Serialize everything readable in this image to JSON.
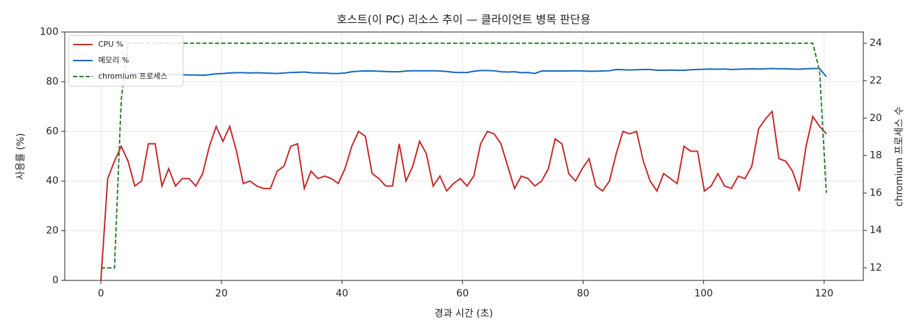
{
  "chart_data": {
    "type": "line",
    "title": "호스트(이 PC) 리소스 추이 — 클라이언트 병목 판단용",
    "x_label": "경과 시간 (초)",
    "y_label": "사용률 (%)",
    "y2_label": "chromium 프로세스 수",
    "x": [
      0,
      1.125,
      2.25,
      3.375,
      4.5,
      5.625,
      6.75,
      7.875,
      9,
      10.125,
      11.25,
      12.375,
      13.5,
      14.625,
      15.75,
      16.875,
      18,
      19.125,
      20.25,
      21.375,
      22.5,
      23.625,
      24.75,
      25.875,
      27,
      28.125,
      29.25,
      30.375,
      31.5,
      32.625,
      33.75,
      34.875,
      36,
      37.125,
      38.25,
      39.375,
      40.5,
      41.625,
      42.75,
      43.875,
      45,
      46.125,
      47.25,
      48.375,
      49.5,
      50.625,
      51.75,
      52.875,
      54,
      55.125,
      56.25,
      57.375,
      58.5,
      59.625,
      60.75,
      61.875,
      63,
      64.125,
      65.25,
      66.375,
      67.5,
      68.625,
      69.75,
      70.875,
      72,
      73.125,
      74.25,
      75.375,
      76.5,
      77.625,
      78.75,
      79.875,
      81,
      82.125,
      83.25,
      84.375,
      85.5,
      86.625,
      87.75,
      88.875,
      90,
      91.125,
      92.25,
      93.375,
      94.5,
      95.625,
      96.75,
      97.875,
      99,
      100.125,
      101.25,
      102.375,
      103.5,
      104.625,
      105.75,
      106.875,
      108,
      109.125,
      110.25,
      111.375,
      112.5,
      113.625,
      114.75,
      115.875,
      117,
      118.125,
      119.25,
      120.375
    ],
    "series": [
      {
        "name": "CPU %",
        "color": "#c62828",
        "linestyle": "solid",
        "values": [
          0,
          41,
          48,
          54,
          48,
          38,
          40,
          55,
          55,
          38,
          45,
          38,
          41,
          41,
          38,
          43,
          54,
          62,
          56,
          62,
          52,
          39,
          40,
          38,
          37,
          37,
          44,
          46,
          54,
          55,
          37,
          44,
          41,
          42,
          41,
          39,
          45,
          54,
          60,
          58,
          43,
          41,
          38,
          38,
          55,
          40,
          46,
          56,
          51,
          38,
          42,
          36,
          39,
          41,
          38,
          42,
          55,
          60,
          59,
          55,
          46,
          37,
          42,
          41,
          38,
          40,
          45,
          57,
          55,
          43,
          40,
          45,
          49,
          38,
          36,
          40,
          51,
          60,
          59,
          60,
          48,
          40,
          36,
          43,
          41,
          39,
          54,
          52,
          52,
          36,
          38,
          43,
          38,
          37,
          42,
          41,
          46,
          61,
          65,
          68,
          49,
          48,
          44,
          36,
          54,
          66,
          62,
          59
        ]
      },
      {
        "name": "메모리 %",
        "color": "#1565c0",
        "linestyle": "solid",
        "values": [
          83,
          83,
          83,
          83,
          83.5,
          83.3,
          83.2,
          83.1,
          83,
          82.9,
          82.9,
          82.8,
          82.8,
          82.7,
          82.7,
          82.6,
          82.8,
          83.2,
          83.3,
          83.5,
          83.6,
          83.6,
          83.5,
          83.6,
          83.5,
          83.4,
          83.3,
          83.5,
          83.7,
          83.8,
          83.9,
          83.6,
          83.5,
          83.5,
          83.3,
          83.3,
          83.5,
          84,
          84.2,
          84.3,
          84.3,
          84.2,
          84.1,
          84,
          84,
          84.3,
          84.4,
          84.4,
          84.4,
          84.4,
          84.3,
          84.1,
          83.8,
          83.7,
          83.7,
          84.2,
          84.5,
          84.5,
          84.4,
          84,
          83.9,
          84,
          83.6,
          83.7,
          83.3,
          84.3,
          84.3,
          84.3,
          84.3,
          84.3,
          84.4,
          84.3,
          84.2,
          84.2,
          84.3,
          84.4,
          84.9,
          84.8,
          84.7,
          84.8,
          84.9,
          84.9,
          84.6,
          84.6,
          84.7,
          84.6,
          84.6,
          84.8,
          84.9,
          85,
          85.1,
          85,
          85.1,
          84.9,
          85,
          85.1,
          85.2,
          85.1,
          85.2,
          85.3,
          85.2,
          85.2,
          85.1,
          85,
          85.2,
          85.3,
          85.3,
          82
        ]
      },
      {
        "name": "chromium 프로세스",
        "color": "#2e7d32",
        "linestyle": "dashed",
        "axis": "y2",
        "values": [
          12,
          12,
          12,
          21,
          24,
          24,
          24,
          24,
          24,
          24,
          24,
          24,
          24,
          24,
          24,
          24,
          24,
          24,
          24,
          24,
          24,
          24,
          24,
          24,
          24,
          24,
          24,
          24,
          24,
          24,
          24,
          24,
          24,
          24,
          24,
          24,
          24,
          24,
          24,
          24,
          24,
          24,
          24,
          24,
          24,
          24,
          24,
          24,
          24,
          24,
          24,
          24,
          24,
          24,
          24,
          24,
          24,
          24,
          24,
          24,
          24,
          24,
          24,
          24,
          24,
          24,
          24,
          24,
          24,
          24,
          24,
          24,
          24,
          24,
          24,
          24,
          24,
          24,
          24,
          24,
          24,
          24,
          24,
          24,
          24,
          24,
          24,
          24,
          24,
          24,
          24,
          24,
          24,
          24,
          24,
          24,
          24,
          24,
          24,
          24,
          24,
          24,
          24,
          24,
          24,
          24,
          22.5,
          16
        ]
      }
    ],
    "xlim": [
      -6,
      126.5
    ],
    "xticks": [
      0,
      20,
      40,
      60,
      80,
      100,
      120
    ],
    "ylim": [
      0,
      100
    ],
    "yticks": [
      0,
      20,
      40,
      60,
      80,
      100
    ],
    "y2lim": [
      11.33,
      24.6
    ],
    "y2ticks": [
      12,
      14,
      16,
      18,
      20,
      22,
      24
    ],
    "grid": true,
    "legend": "upper-left"
  }
}
